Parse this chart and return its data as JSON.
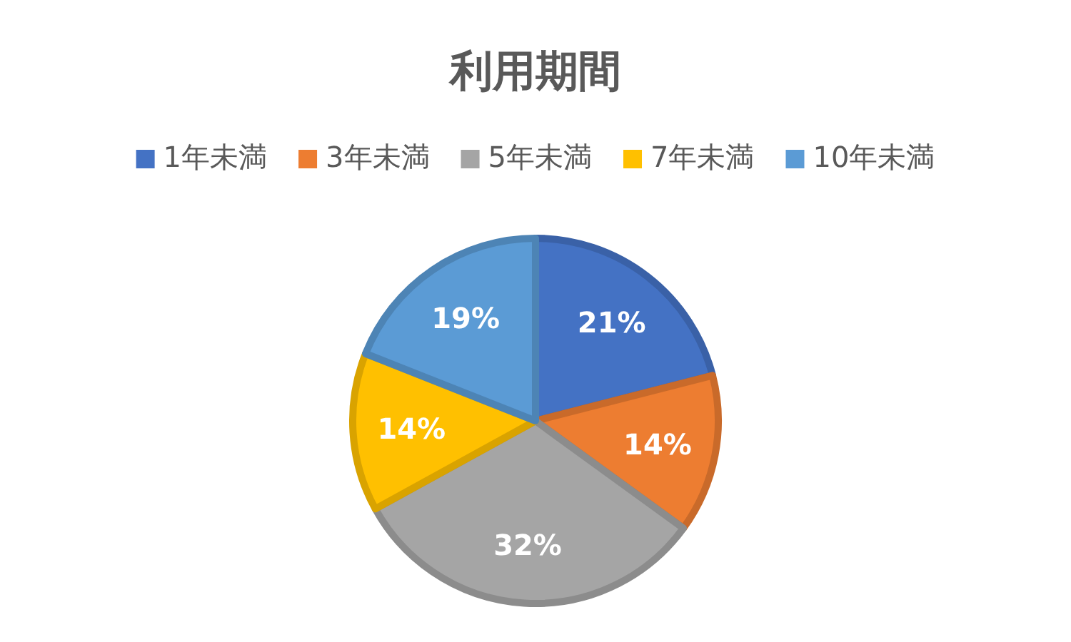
{
  "chart_data": {
    "type": "pie",
    "title": "利用期間",
    "categories": [
      "1年未満",
      "3年未満",
      "5年未満",
      "7年未満",
      "10年未満"
    ],
    "values": [
      21,
      14,
      32,
      14,
      19
    ],
    "value_labels": [
      "21%",
      "14%",
      "32%",
      "14%",
      "19%"
    ],
    "colors": [
      "#4472c4",
      "#ed7d31",
      "#a5a5a5",
      "#ffc000",
      "#5b9bd5"
    ],
    "legend": "top"
  }
}
